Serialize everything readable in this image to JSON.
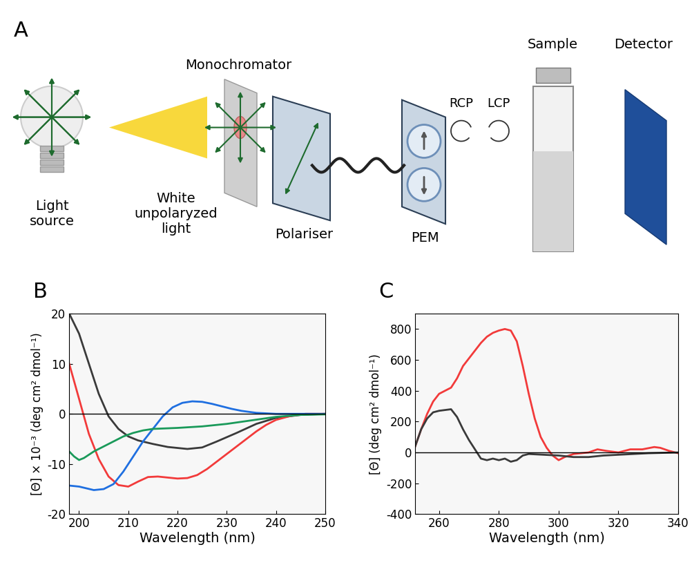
{
  "diagram": {
    "panel": "A",
    "labels": {
      "light_source": "Light\nsource",
      "white_light": "White\nunpolaryzed\nlight",
      "monochromator": "Monochromator",
      "polariser": "Polariser",
      "pem": "PEM",
      "rcp": "RCP",
      "lcp": "LCP",
      "sample": "Sample",
      "detector": "Detector"
    }
  },
  "chart_data": [
    {
      "type": "line",
      "title": "B",
      "x_label": "Wavelength (nm)",
      "y_label": "[Θ] × 10⁻³ (deg cm² dmol⁻¹)",
      "xlim": [
        198,
        250
      ],
      "xticks": [
        200,
        210,
        220,
        230,
        240,
        250
      ],
      "ylim": [
        -20,
        20
      ],
      "yticks": [
        -20,
        -10,
        0,
        10,
        20
      ],
      "series": [
        {
          "color": "#3a3a3a",
          "x": [
            198,
            200,
            202,
            204,
            206,
            208,
            210,
            212,
            215,
            218,
            222,
            225,
            228,
            232,
            236,
            240,
            245,
            250
          ],
          "values": [
            20,
            16,
            10,
            4,
            -0.5,
            -3,
            -4.5,
            -5.3,
            -6,
            -6.6,
            -7,
            -6.7,
            -5.5,
            -3.8,
            -2,
            -0.8,
            -0.2,
            0
          ]
        },
        {
          "color": "#f23a3a",
          "x": [
            198,
            200,
            202,
            204,
            206,
            208,
            210,
            212,
            214,
            216,
            218,
            220,
            222,
            224,
            226,
            228,
            230,
            232,
            234,
            236,
            238,
            240,
            243,
            246,
            250
          ],
          "values": [
            10,
            3,
            -4,
            -9,
            -12.5,
            -14.2,
            -14.5,
            -13.5,
            -12.6,
            -12.5,
            -12.7,
            -12.9,
            -12.8,
            -12.2,
            -11,
            -9.5,
            -8,
            -6.5,
            -5,
            -3.5,
            -2.2,
            -1.2,
            -0.4,
            0,
            0
          ]
        },
        {
          "color": "#1f6fe0",
          "x": [
            198,
            200,
            203,
            205,
            207,
            209,
            211,
            213,
            215,
            217,
            219,
            221,
            223,
            225,
            227,
            229,
            231,
            233,
            236,
            240,
            250
          ],
          "values": [
            -14.3,
            -14.5,
            -15.2,
            -15,
            -14,
            -11.5,
            -8.5,
            -5.5,
            -3,
            -0.5,
            1.3,
            2.2,
            2.5,
            2.4,
            2.0,
            1.5,
            1.0,
            0.6,
            0.2,
            0,
            0
          ]
        },
        {
          "color": "#1a9a5a",
          "x": [
            198,
            199,
            200,
            201,
            203,
            205,
            207,
            209,
            211,
            213,
            215,
            220,
            225,
            230,
            235,
            240,
            245,
            250
          ],
          "values": [
            -7.5,
            -8.5,
            -9.2,
            -8.8,
            -7.5,
            -6.5,
            -5.5,
            -4.5,
            -3.8,
            -3.3,
            -3,
            -2.8,
            -2.5,
            -2.0,
            -1.3,
            -0.6,
            -0.2,
            -0.1
          ]
        }
      ]
    },
    {
      "type": "line",
      "title": "C",
      "x_label": "Wavelength (nm)",
      "y_label": "[Θ] (deg cm² dmol⁻¹)",
      "xlim": [
        252,
        340
      ],
      "xticks": [
        260,
        280,
        300,
        320,
        340
      ],
      "ylim": [
        -400,
        900
      ],
      "yticks": [
        -400,
        -200,
        0,
        200,
        400,
        600,
        800
      ],
      "series": [
        {
          "color": "#f23a3a",
          "x": [
            252,
            254,
            256,
            258,
            260,
            262,
            264,
            266,
            268,
            270,
            272,
            274,
            276,
            278,
            280,
            282,
            284,
            286,
            288,
            290,
            292,
            294,
            296,
            298,
            300,
            302,
            305,
            310,
            313,
            316,
            320,
            324,
            328,
            332,
            334,
            337,
            340
          ],
          "values": [
            40,
            150,
            250,
            330,
            380,
            400,
            420,
            480,
            560,
            610,
            660,
            710,
            750,
            775,
            790,
            800,
            790,
            720,
            560,
            380,
            220,
            100,
            30,
            -20,
            -50,
            -30,
            -10,
            0,
            20,
            10,
            0,
            20,
            20,
            35,
            30,
            10,
            -5
          ]
        },
        {
          "color": "#3a3a3a",
          "x": [
            252,
            254,
            256,
            258,
            260,
            262,
            264,
            266,
            268,
            270,
            272,
            274,
            276,
            278,
            280,
            282,
            284,
            286,
            288,
            290,
            295,
            300,
            305,
            310,
            315,
            320,
            325,
            330,
            340
          ],
          "values": [
            40,
            150,
            220,
            260,
            270,
            275,
            280,
            230,
            150,
            80,
            20,
            -40,
            -50,
            -40,
            -50,
            -40,
            -60,
            -50,
            -20,
            -10,
            -15,
            -20,
            -30,
            -30,
            -20,
            -15,
            -10,
            -5,
            0
          ]
        }
      ]
    }
  ]
}
